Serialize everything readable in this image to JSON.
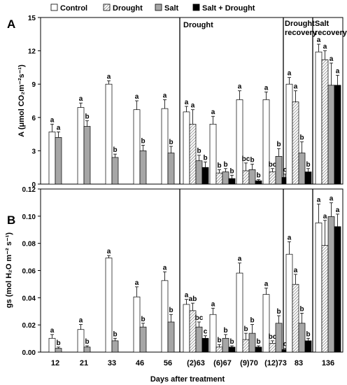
{
  "legend": {
    "items": [
      {
        "label": "Control",
        "color": "#ffffff",
        "pattern": "none"
      },
      {
        "label": "Drought",
        "color": "#cccccc",
        "pattern": "hatch"
      },
      {
        "label": "Salt",
        "color": "#a6a6a6",
        "pattern": "none"
      },
      {
        "label": "Salt + Drought",
        "color": "#000000",
        "pattern": "none"
      }
    ]
  },
  "panel_labels": [
    "A",
    "B"
  ],
  "phase_labels": {
    "drought": "Drought",
    "drought_recovery": [
      "Drought",
      "recovery"
    ],
    "salt_recovery": [
      "Salt",
      "recovery"
    ]
  },
  "chart_data": [
    {
      "type": "bar",
      "panel": "A",
      "ylabel": "A (μmol CO₂m⁻²s⁻¹)",
      "ylim": [
        0,
        15
      ],
      "yticks": [
        "0",
        "3",
        "6",
        "9",
        "12",
        "15"
      ],
      "categories": [
        "12",
        "21",
        "33",
        "46",
        "56",
        "(2)63",
        "(6)67",
        "(9)70",
        "(12)73",
        "83",
        "136"
      ],
      "series": [
        {
          "name": "Control",
          "values": [
            4.7,
            6.9,
            9.0,
            6.7,
            6.8,
            6.5,
            5.4,
            7.6,
            7.6,
            9.0,
            11.9
          ],
          "errors": [
            0.7,
            0.4,
            0.3,
            0.8,
            0.8,
            0.5,
            0.7,
            0.8,
            0.7,
            0.6,
            0.7
          ],
          "letters": [
            "a",
            "a",
            "a",
            "a",
            "a",
            "a",
            "a",
            "a",
            "a",
            "a",
            "a"
          ]
        },
        {
          "name": "Drought",
          "values": [
            null,
            null,
            null,
            null,
            null,
            5.4,
            1.0,
            1.2,
            1.1,
            7.4,
            11.2
          ],
          "errors": [
            0,
            0,
            0,
            0,
            0,
            1.3,
            0.3,
            0.7,
            0.3,
            1.0,
            0.8
          ],
          "letters": [
            "",
            "",
            "",
            "",
            "",
            "a",
            "b",
            "bc",
            "bc",
            "a",
            "a"
          ]
        },
        {
          "name": "Salt",
          "values": [
            4.2,
            5.2,
            2.4,
            3.0,
            2.8,
            2.1,
            1.1,
            1.3,
            2.5,
            2.8,
            8.9
          ],
          "errors": [
            0.5,
            0.5,
            0.3,
            0.5,
            0.6,
            0.5,
            0.3,
            0.5,
            0.7,
            1.0,
            2.0
          ],
          "letters": [
            "a",
            "b",
            "b",
            "b",
            "b",
            "b",
            "b",
            "b",
            "b",
            "b",
            "a"
          ]
        },
        {
          "name": "Salt + Drought",
          "values": [
            null,
            null,
            null,
            null,
            null,
            1.5,
            0.5,
            0.3,
            0.6,
            1.1,
            8.9
          ],
          "errors": [
            0,
            0,
            0,
            0,
            0,
            0.5,
            0.3,
            0.1,
            0.3,
            0.3,
            0.9
          ],
          "letters": [
            "",
            "",
            "",
            "",
            "",
            "b",
            "b",
            "b",
            "c",
            "b",
            "a"
          ]
        }
      ]
    },
    {
      "type": "bar",
      "panel": "B",
      "ylabel": "gs (mol H₂O m⁻² s⁻¹)",
      "xlabel": "Days after treatment",
      "ylim": [
        0,
        0.13
      ],
      "yticks": [
        "0.00",
        "0.02",
        "0.04",
        "0.06",
        "0.08",
        "0.10",
        "0.12"
      ],
      "categories": [
        "12",
        "21",
        "33",
        "46",
        "56",
        "(2)63",
        "(6)67",
        "(9)70",
        "(12)73",
        "83",
        "136"
      ],
      "series": [
        {
          "name": "Control",
          "values": [
            0.011,
            0.018,
            0.075,
            0.044,
            0.057,
            0.038,
            0.03,
            0.063,
            0.046,
            0.078,
            0.103
          ],
          "errors": [
            0.003,
            0.004,
            0.002,
            0.008,
            0.007,
            0.004,
            0.005,
            0.008,
            0.005,
            0.01,
            0.015
          ],
          "letters": [
            "a",
            "a",
            "a",
            "a",
            "a",
            "a",
            "a",
            "a",
            "a",
            "a",
            "a"
          ]
        },
        {
          "name": "Drought",
          "values": [
            null,
            null,
            null,
            null,
            null,
            0.033,
            0.004,
            0.01,
            0.007,
            0.054,
            0.085
          ],
          "errors": [
            0,
            0,
            0,
            0,
            0,
            0.006,
            0.002,
            0.005,
            0.002,
            0.008,
            0.02
          ],
          "letters": [
            "",
            "",
            "",
            "",
            "",
            "ab",
            "b",
            "b",
            "bc",
            "a",
            "a"
          ]
        },
        {
          "name": "Salt",
          "values": [
            0.003,
            0.004,
            0.009,
            0.02,
            0.024,
            0.02,
            0.011,
            0.015,
            0.023,
            0.023,
            0.108
          ],
          "errors": [
            0.001,
            0.001,
            0.002,
            0.003,
            0.006,
            0.004,
            0.003,
            0.007,
            0.006,
            0.008,
            0.011
          ],
          "letters": [
            "b",
            "b",
            "b",
            "b",
            "b",
            "bc",
            "b",
            "b",
            "b",
            "b",
            "a"
          ]
        },
        {
          "name": "Salt + Drought",
          "values": [
            null,
            null,
            null,
            null,
            null,
            0.011,
            0.004,
            0.004,
            0.002,
            0.009,
            0.1
          ],
          "errors": [
            0,
            0,
            0,
            0,
            0,
            0.002,
            0.001,
            0.001,
            0.001,
            0.002,
            0.01
          ],
          "letters": [
            "",
            "",
            "",
            "",
            "",
            "c",
            "b",
            "b",
            "c",
            "b",
            "a"
          ]
        }
      ]
    }
  ]
}
